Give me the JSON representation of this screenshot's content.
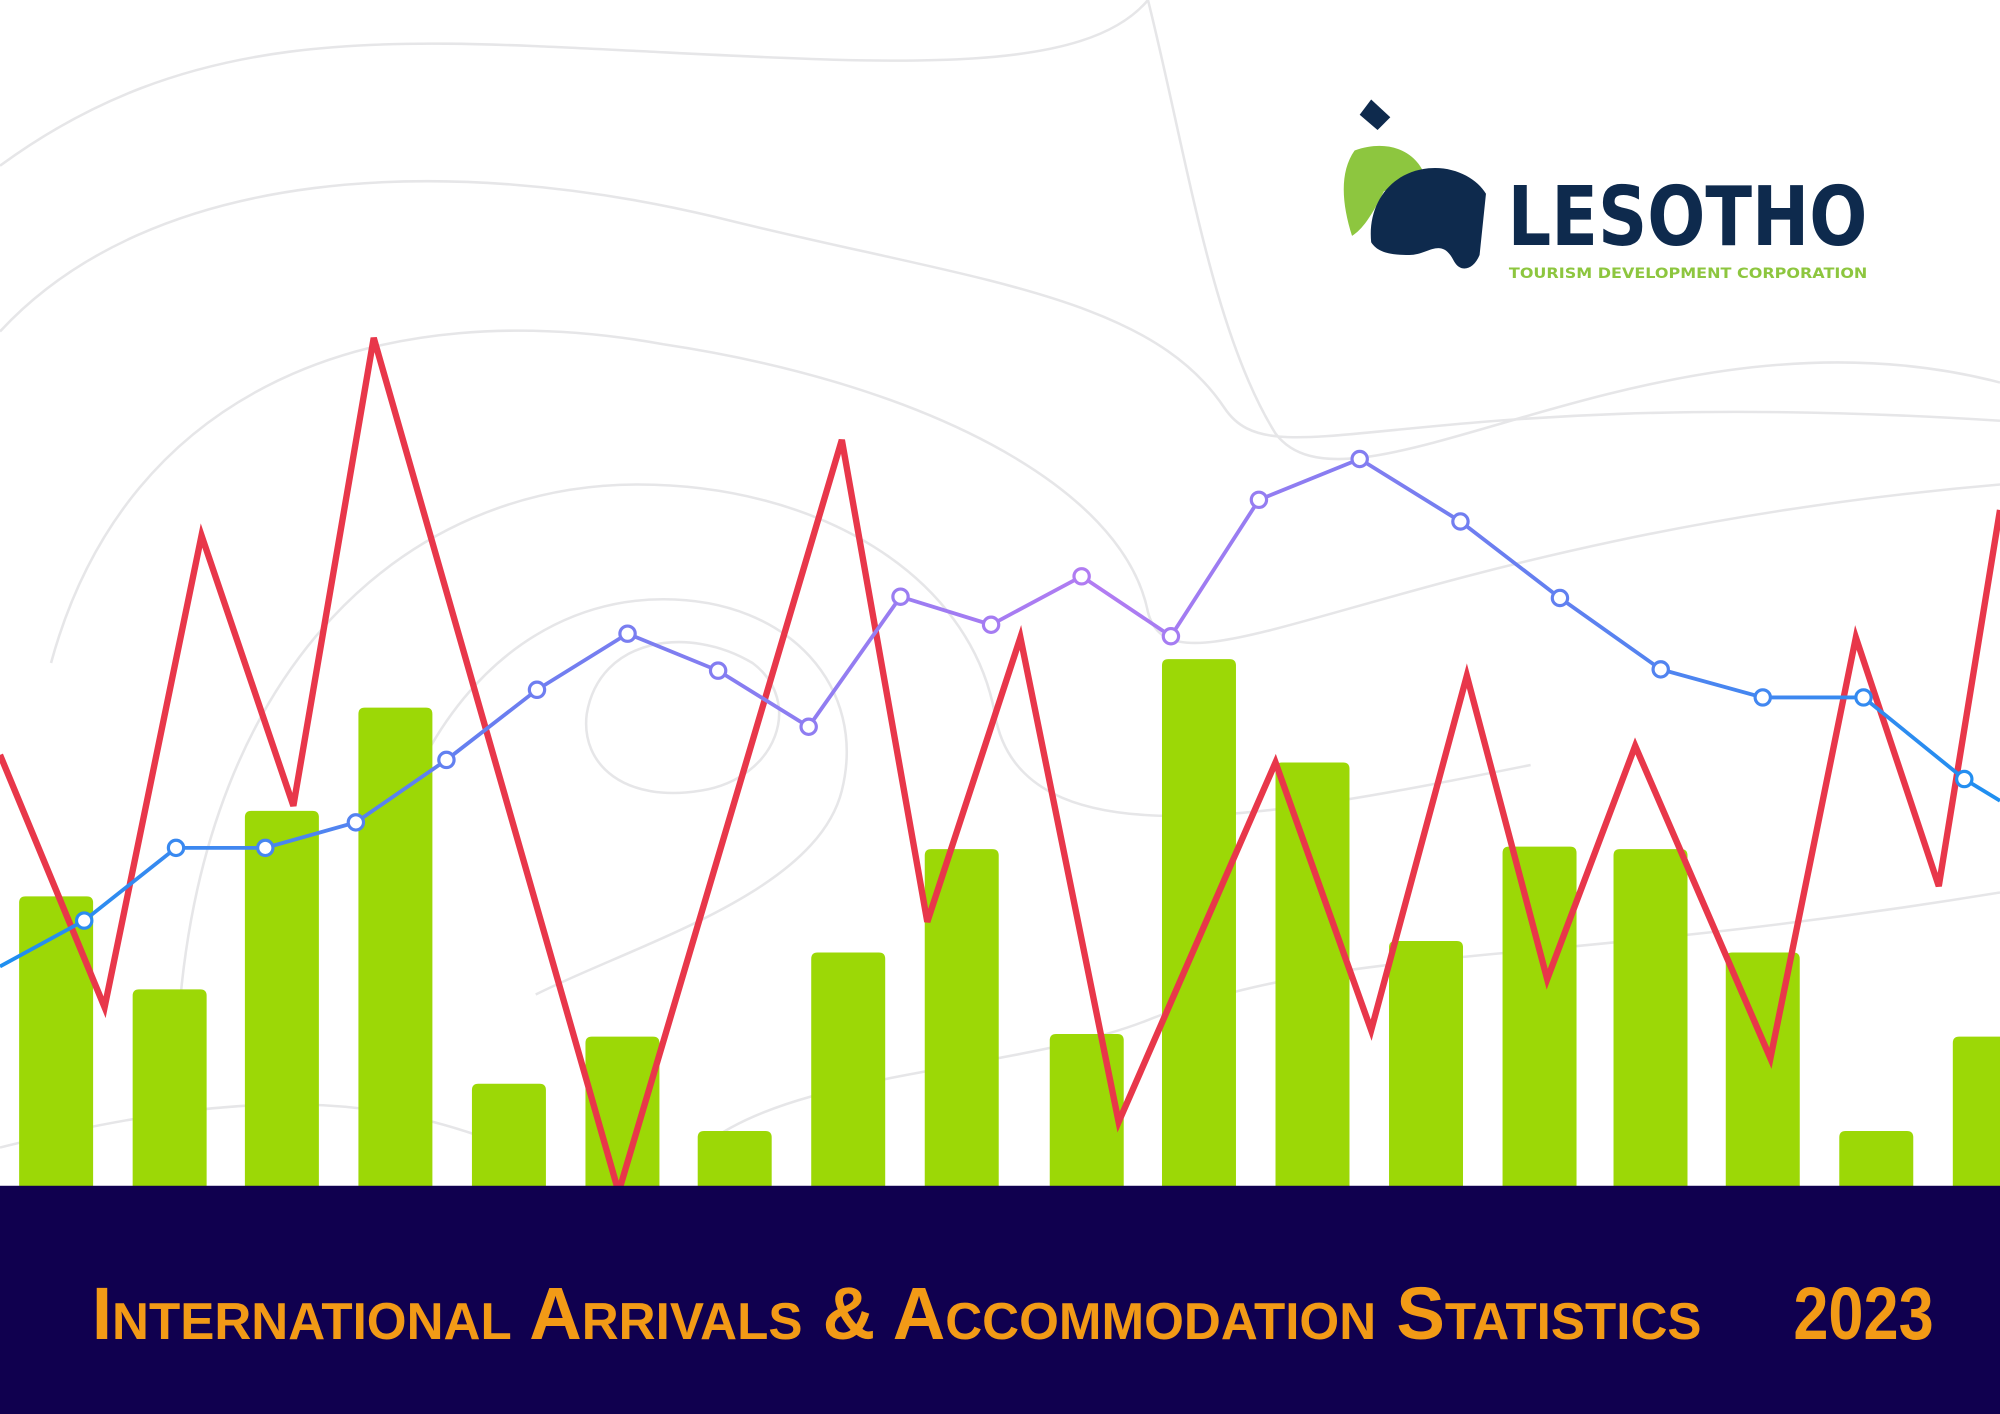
{
  "logo": {
    "name": "LESOTHO",
    "tagline": "TOURISM DEVELOPMENT CORPORATION"
  },
  "title": "International Arrivals & Accommodation Statistics",
  "year": "2023"
}
